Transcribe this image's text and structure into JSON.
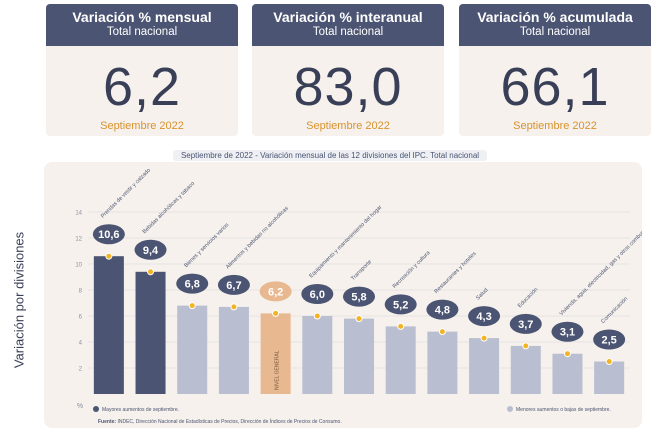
{
  "cards": [
    {
      "title": "Variación % mensual",
      "subtitle": "Total nacional",
      "value": "6,2",
      "date": "Septiembre 2022"
    },
    {
      "title": "Variación % interanual",
      "subtitle": "Total nacional",
      "value": "83,0",
      "date": "Septiembre 2022"
    },
    {
      "title": "Variación % acumulada",
      "subtitle": "Total nacional",
      "value": "66,1",
      "date": "Septiembre 2022"
    }
  ],
  "chart_title": "Septiembre de 2022 - Variación mensual de las 12 divisiones del IPC. Total nacional",
  "legend": {
    "highest": "Mayores aumentos de septiembre.",
    "lower": "Menores aumentos o bajas de septiembre."
  },
  "source": {
    "label": "Fuente:",
    "text": "INDEC, Dirección Nacional de Estadísticas de Precios, Dirección de Índices de Precios de Consumo."
  },
  "chart_data": {
    "type": "bar",
    "ylabel": "Variación por divisiones",
    "yunit": "%",
    "ylim": [
      0,
      14
    ],
    "yticks": [
      2,
      4,
      6,
      8,
      10,
      12,
      14
    ],
    "categories": [
      "Prendas de vestir y calzado",
      "Bebidas alcohólicas y tabaco",
      "Bienes y servicios varios",
      "Alimentos y bebidas no alcohólicas",
      "NIVEL GENERAL",
      "Equipamiento y mantenimiento del hogar",
      "Transporte",
      "Recreación y cultura",
      "Restaurantes y hoteles",
      "Salud",
      "Educación",
      "Vivienda, agua, electricidad, gas y otros combustibles",
      "Comunicación"
    ],
    "values": [
      10.6,
      9.4,
      6.8,
      6.7,
      6.2,
      6.0,
      5.8,
      5.2,
      4.8,
      4.3,
      3.7,
      3.1,
      2.5
    ],
    "labels": [
      "10,6",
      "9,4",
      "6,8",
      "6,7",
      "6,2",
      "6,0",
      "5,8",
      "5,2",
      "4,8",
      "4,3",
      "3,7",
      "3,1",
      "2,5"
    ],
    "group": [
      "highest",
      "highest",
      "lower",
      "lower",
      "general",
      "lower",
      "lower",
      "lower",
      "lower",
      "lower",
      "lower",
      "lower",
      "lower"
    ],
    "general_label": "NIVEL GENERAL",
    "colors": {
      "highest": "#4b5472",
      "lower": "#b9bfd0",
      "general": "#e8b991",
      "marker": "#f2b324",
      "grid": "#d8d8de"
    }
  }
}
